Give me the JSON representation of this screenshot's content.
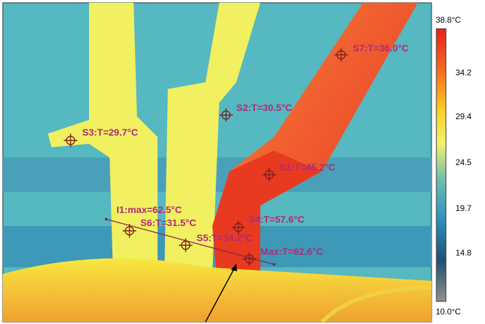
{
  "scale": {
    "max": "38.8°C",
    "ticks": [
      "34.2",
      "29.4",
      "24.5",
      "19.7",
      "14.8"
    ],
    "min": "10.0°C"
  },
  "spots": [
    {
      "label": "S7:T=36.0°C"
    },
    {
      "label": "S2:T=30.5°C"
    },
    {
      "label": "S3:T=29.7°C"
    },
    {
      "label": "S1:T=45.2°C"
    },
    {
      "label": "I1:max=62.5°C"
    },
    {
      "label": "S6:T=31.5°C"
    },
    {
      "label": "S4:T=57.6°C"
    },
    {
      "label": "S5:T=34.2°C"
    },
    {
      "label": "Max:T=62.6°C"
    }
  ]
}
